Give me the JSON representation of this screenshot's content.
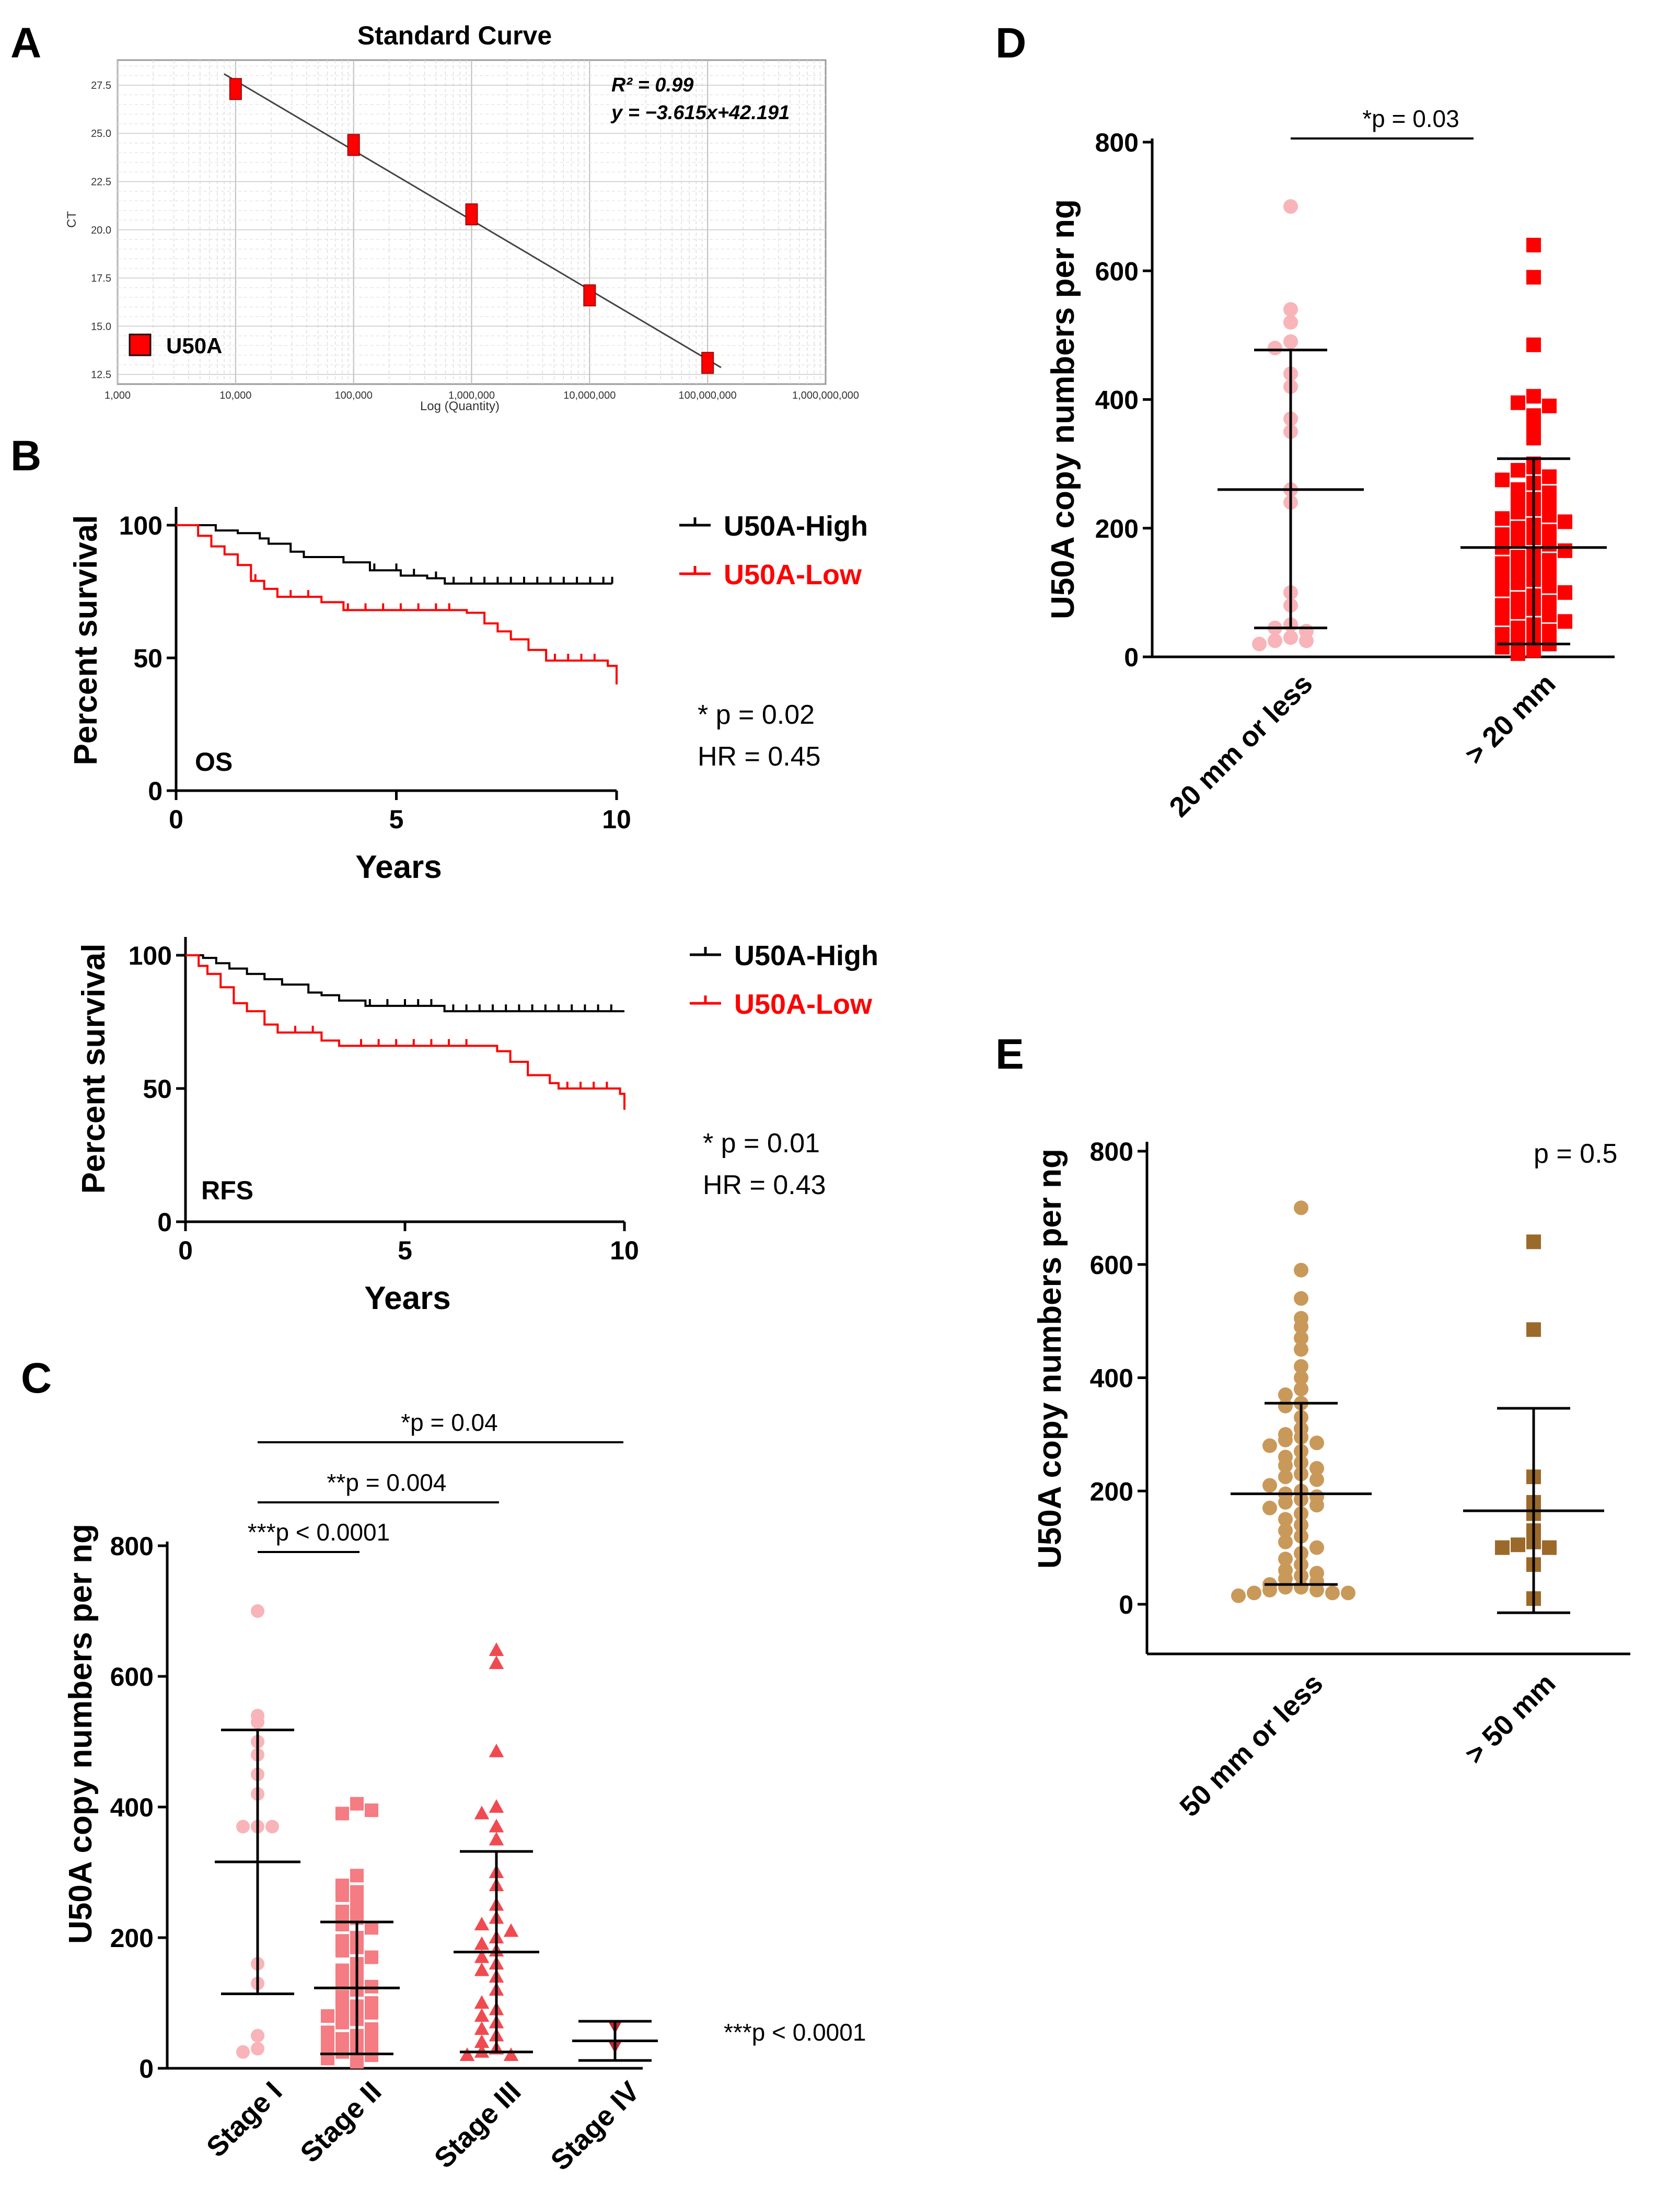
{
  "figure": {
    "panelA": {
      "letter": "A",
      "title": "Standard Curve",
      "r2_label": "R² = 0.99",
      "equation": "y = −3.615x+42.191",
      "ylabel": "CT",
      "xlabel": "Log (Quantity)",
      "legend": "U50A"
    },
    "panelB": {
      "letter": "B",
      "os": {
        "ylabel": "Percent survival",
        "xlabel": "Years",
        "tag": "OS",
        "legend_high": "U50A-High",
        "legend_low": "U50A-Low",
        "pval": "* p = 0.02",
        "hr": "HR = 0.45"
      },
      "rfs": {
        "ylabel": "Percent survival",
        "xlabel": "Years",
        "tag": "RFS",
        "legend_high": "U50A-High",
        "legend_low": "U50A-Low",
        "pval": "* p = 0.01",
        "hr": "HR = 0.43"
      }
    },
    "panelC": {
      "letter": "C",
      "ylabel": "U50A copy numbers per ng",
      "comparisons": [
        "*p = 0.04",
        "**p = 0.004",
        "***p < 0.0001"
      ],
      "side_pval": "***p < 0.0001"
    },
    "panelD": {
      "letter": "D",
      "ylabel": "U50A copy numbers per ng",
      "pval": "*p = 0.03"
    },
    "panelE": {
      "letter": "E",
      "ylabel": "U50A copy numbers per ng",
      "pval": "p = 0.5"
    }
  },
  "chart_data": [
    {
      "id": "A",
      "type": "scatter",
      "title": "Standard Curve",
      "xlabel": "Log (Quantity)",
      "ylabel": "CT",
      "xscale": "log",
      "x_ticks": [
        "1,000",
        "10,000",
        "100,000",
        "1,000,000",
        "10,000,000",
        "100,000,000",
        "1,000,000,000"
      ],
      "x_tick_values": [
        1000,
        10000,
        100000,
        1000000,
        10000000,
        100000000,
        1000000000
      ],
      "y_ticks": [
        12.5,
        15.0,
        17.5,
        20.0,
        22.5,
        25.0,
        27.5
      ],
      "ylim": [
        12.0,
        28.8
      ],
      "x": [
        10000,
        100000,
        1000000,
        10000000,
        100000000
      ],
      "y": [
        27.3,
        24.4,
        20.8,
        16.6,
        13.1
      ],
      "fit": {
        "slope": -3.615,
        "intercept": 42.191
      },
      "legend": [
        "U50A"
      ],
      "color": "#ff0000"
    },
    {
      "id": "B-OS",
      "type": "line",
      "subtype": "kaplan-meier",
      "xlabel": "Years",
      "ylabel": "Percent survival",
      "xlim": [
        0,
        10
      ],
      "ylim": [
        0,
        100
      ],
      "x_ticks": [
        "0",
        "5",
        "10"
      ],
      "x_tick_values": [
        0,
        5,
        10
      ],
      "y_ticks": [
        "0",
        "50",
        "100"
      ],
      "y_tick_values": [
        0,
        50,
        100
      ],
      "series": [
        {
          "name": "U50A-High",
          "color": "#000000",
          "x": [
            0,
            0.75,
            0.9,
            1.4,
            1.9,
            2.1,
            2.6,
            2.9,
            3.3,
            3.8,
            4.4,
            5.1,
            5.7,
            6.1,
            9.9
          ],
          "y": [
            100,
            100,
            98,
            97,
            95,
            93,
            90,
            88,
            88,
            86,
            83,
            81,
            80,
            78,
            78
          ],
          "censor_x": [
            4.5,
            5.0,
            5.4,
            5.9,
            6.3,
            6.7,
            7.0,
            7.3,
            7.6,
            7.9,
            8.2,
            8.5,
            8.8,
            9.1,
            9.4,
            9.7,
            9.9
          ]
        },
        {
          "name": "U50A-Low",
          "color": "#ff0000",
          "x": [
            0,
            0.5,
            0.8,
            1.1,
            1.4,
            1.7,
            2.0,
            2.3,
            3.3,
            3.8,
            6.6,
            7.0,
            7.3,
            7.6,
            8.0,
            8.4,
            9.8,
            10
          ],
          "y": [
            100,
            96,
            92,
            89,
            85,
            79,
            76,
            73,
            71,
            68,
            67,
            63,
            60,
            57,
            53,
            49,
            47,
            40
          ],
          "censor_x": [
            1.8,
            2.6,
            3.0,
            3.9,
            4.3,
            4.7,
            5.1,
            5.5,
            5.9,
            6.2,
            8.6,
            8.9,
            9.2,
            9.5
          ]
        }
      ],
      "tag": "OS",
      "pval": "* p = 0.02",
      "hr": "HR = 0.45"
    },
    {
      "id": "B-RFS",
      "type": "line",
      "subtype": "kaplan-meier",
      "xlabel": "Years",
      "ylabel": "Percent survival",
      "xlim": [
        0,
        10
      ],
      "ylim": [
        0,
        100
      ],
      "x_ticks": [
        "0",
        "5",
        "10"
      ],
      "x_tick_values": [
        0,
        5,
        10
      ],
      "y_ticks": [
        "0",
        "50",
        "100"
      ],
      "y_tick_values": [
        0,
        50,
        100
      ],
      "series": [
        {
          "name": "U50A-High",
          "color": "#000000",
          "x": [
            0,
            0.4,
            0.7,
            1.0,
            1.4,
            1.8,
            2.2,
            2.8,
            3.1,
            3.5,
            4.1,
            5.9,
            10
          ],
          "y": [
            100,
            99,
            97,
            95,
            93,
            91,
            89,
            86,
            85,
            83,
            81,
            79,
            79
          ],
          "censor_x": [
            4.2,
            4.6,
            5.0,
            5.3,
            5.6,
            6.1,
            6.4,
            6.7,
            7.0,
            7.3,
            7.6,
            7.9,
            8.2,
            8.5,
            8.8,
            9.1,
            9.4,
            9.7
          ]
        },
        {
          "name": "U50A-Low",
          "color": "#ff0000",
          "x": [
            0,
            0.3,
            0.5,
            0.8,
            1.1,
            1.4,
            1.8,
            2.1,
            3.1,
            3.5,
            7.1,
            7.4,
            7.8,
            8.3,
            8.5,
            9.9,
            10
          ],
          "y": [
            100,
            96,
            93,
            88,
            82,
            79,
            74,
            71,
            68,
            66,
            64,
            60,
            55,
            52,
            50,
            48,
            42
          ],
          "censor_x": [
            2.5,
            2.9,
            4.0,
            4.4,
            4.8,
            5.2,
            5.6,
            6.0,
            6.4,
            8.7,
            9.0,
            9.3,
            9.6
          ]
        }
      ],
      "tag": "RFS",
      "pval": "* p = 0.01",
      "hr": "HR = 0.43"
    },
    {
      "id": "C",
      "type": "scatter",
      "subtype": "dot-plot",
      "ylabel": "U50A copy numbers per ng",
      "ylim": [
        0,
        800
      ],
      "y_ticks": [
        "0",
        "200",
        "400",
        "600",
        "800"
      ],
      "y_tick_values": [
        0,
        200,
        400,
        600,
        800
      ],
      "categories": [
        "Stage I",
        "Stage II",
        "Stage III",
        "Stage IV"
      ],
      "series": [
        {
          "name": "Stage I",
          "marker": "circle",
          "color": "#f8b4b8",
          "mean": 316,
          "sd_low": 114,
          "sd_high": 518,
          "values": [
            700,
            540,
            530,
            500,
            480,
            450,
            420,
            370,
            370,
            370,
            160,
            130,
            50,
            30,
            25
          ]
        },
        {
          "name": "Stage II",
          "marker": "square",
          "color": "#f47c82",
          "mean": 123,
          "sd_low": 22,
          "sd_high": 224,
          "values": [
            405,
            390,
            395,
            295,
            280,
            270,
            265,
            250,
            240,
            230,
            220,
            215,
            200,
            195,
            185,
            180,
            170,
            160,
            150,
            140,
            135,
            125,
            120,
            110,
            100,
            95,
            90,
            85,
            80,
            75,
            70,
            60,
            55,
            50,
            45,
            40,
            35,
            30,
            25,
            20,
            15,
            10
          ]
        },
        {
          "name": "Stage III",
          "marker": "triangle",
          "color": "#f04a50",
          "mean": 178,
          "sd_low": 25,
          "sd_high": 332,
          "values": [
            640,
            620,
            485,
            400,
            390,
            370,
            350,
            300,
            280,
            250,
            230,
            220,
            210,
            200,
            190,
            180,
            170,
            160,
            150,
            140,
            120,
            100,
            90,
            80,
            70,
            60,
            50,
            40,
            30,
            25,
            20,
            20
          ]
        },
        {
          "name": "Stage IV",
          "marker": "triangle-down",
          "color": "#c0282e",
          "mean": 42,
          "sd_low": 12,
          "sd_high": 72,
          "values": [
            65,
            35
          ]
        }
      ],
      "comparisons": [
        {
          "from": "Stage I",
          "to": "Stage IV",
          "label": "*p = 0.04"
        },
        {
          "from": "Stage I",
          "to": "Stage III",
          "label": "**p = 0.004"
        },
        {
          "from": "Stage I",
          "to": "Stage II",
          "label": "***p < 0.0001"
        }
      ],
      "side_pval": "***p < 0.0001"
    },
    {
      "id": "D",
      "type": "scatter",
      "subtype": "dot-plot",
      "ylabel": "U50A copy numbers per ng",
      "ylim": [
        0,
        800
      ],
      "y_ticks": [
        "0",
        "200",
        "400",
        "600",
        "800"
      ],
      "y_tick_values": [
        0,
        200,
        400,
        600,
        800
      ],
      "categories": [
        "20 mm or less",
        "> 20 mm"
      ],
      "series": [
        {
          "name": "20 mm or less",
          "marker": "circle",
          "color": "#f8b4b8",
          "mean": 260,
          "sd_low": 45,
          "sd_high": 477,
          "values": [
            700,
            540,
            520,
            490,
            480,
            440,
            420,
            370,
            350,
            260,
            240,
            100,
            80,
            50,
            45,
            40,
            30,
            25,
            25,
            20
          ]
        },
        {
          "name": "> 20 mm",
          "marker": "square",
          "color": "#ff0000",
          "mean": 170,
          "sd_low": 20,
          "sd_high": 308,
          "values": [
            640,
            590,
            485,
            405,
            395,
            390,
            375,
            355,
            340,
            300,
            295,
            290,
            280,
            275,
            270,
            260,
            255,
            245,
            240,
            235,
            230,
            225,
            220,
            215,
            210,
            205,
            200,
            195,
            190,
            185,
            180,
            175,
            170,
            165,
            160,
            155,
            150,
            145,
            140,
            135,
            130,
            125,
            120,
            115,
            110,
            105,
            100,
            95,
            90,
            85,
            80,
            75,
            70,
            65,
            60,
            55,
            50,
            45,
            40,
            35,
            30,
            25,
            20,
            15,
            10,
            5
          ]
        }
      ],
      "comparisons": [
        {
          "from": "20 mm or less",
          "to": "> 20 mm",
          "label": "*p = 0.03"
        }
      ]
    },
    {
      "id": "E",
      "type": "scatter",
      "subtype": "dot-plot",
      "ylabel": "U50A copy numbers per ng",
      "ylim": [
        -100,
        800
      ],
      "y_ticks": [
        "0",
        "200",
        "400",
        "600",
        "800"
      ],
      "y_tick_values": [
        0,
        200,
        400,
        600,
        800
      ],
      "categories": [
        "50 mm or less",
        "> 50 mm"
      ],
      "series": [
        {
          "name": "50 mm or less",
          "marker": "circle",
          "color": "#c9995a",
          "mean": 195,
          "sd_low": 35,
          "sd_high": 355,
          "values": [
            700,
            590,
            540,
            505,
            490,
            470,
            450,
            420,
            400,
            380,
            370,
            355,
            350,
            330,
            310,
            300,
            295,
            290,
            285,
            280,
            270,
            260,
            250,
            245,
            240,
            230,
            225,
            220,
            210,
            200,
            195,
            190,
            185,
            180,
            175,
            170,
            160,
            150,
            140,
            130,
            120,
            110,
            100,
            90,
            80,
            70,
            60,
            55,
            50,
            45,
            40,
            35,
            30,
            30,
            25,
            25,
            20,
            20,
            20,
            15
          ]
        },
        {
          "name": "> 50 mm",
          "marker": "square",
          "color": "#9b6a2a",
          "mean": 165,
          "sd_low": -15,
          "sd_high": 346,
          "values": [
            640,
            485,
            225,
            180,
            160,
            130,
            110,
            105,
            100,
            100,
            70,
            10
          ]
        }
      ],
      "pval": "p = 0.5"
    }
  ]
}
